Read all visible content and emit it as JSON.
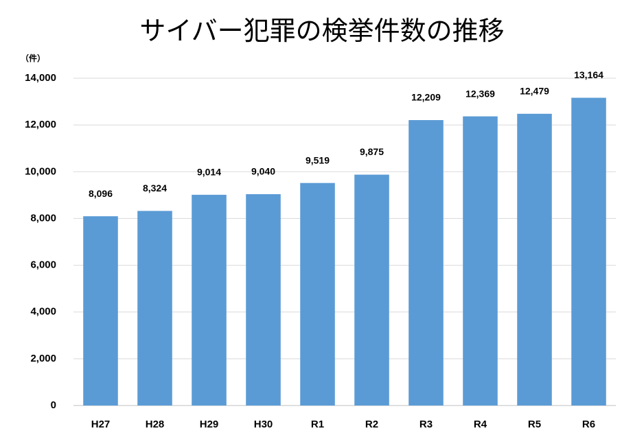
{
  "chart_data": {
    "type": "bar",
    "title": "サイバー犯罪の検挙件数の推移",
    "y_unit": "（件）",
    "categories": [
      "H27",
      "H28",
      "H29",
      "H30",
      "R1",
      "R2",
      "R3",
      "R4",
      "R5",
      "R6"
    ],
    "values": [
      8096,
      8324,
      9014,
      9040,
      9519,
      9875,
      12209,
      12369,
      12479,
      13164
    ],
    "value_labels": [
      "8,096",
      "8,324",
      "9,014",
      "9,040",
      "9,519",
      "9,875",
      "12,209",
      "12,369",
      "12,479",
      "13,164"
    ],
    "color": "#5b9bd5",
    "ylim": [
      0,
      14000
    ],
    "yticks": [
      0,
      {
        "value": 2000,
        "label": "2,000"
      },
      {
        "value": 4000,
        "label": "4,000"
      },
      {
        "value": 6000,
        "label": "6,000"
      },
      {
        "value": 8000,
        "label": "8,000"
      },
      {
        "value": 10000,
        "label": "10,000"
      },
      {
        "value": 12000,
        "label": "12,000"
      },
      {
        "value": 14000,
        "label": "14,000"
      }
    ],
    "grid": true
  }
}
